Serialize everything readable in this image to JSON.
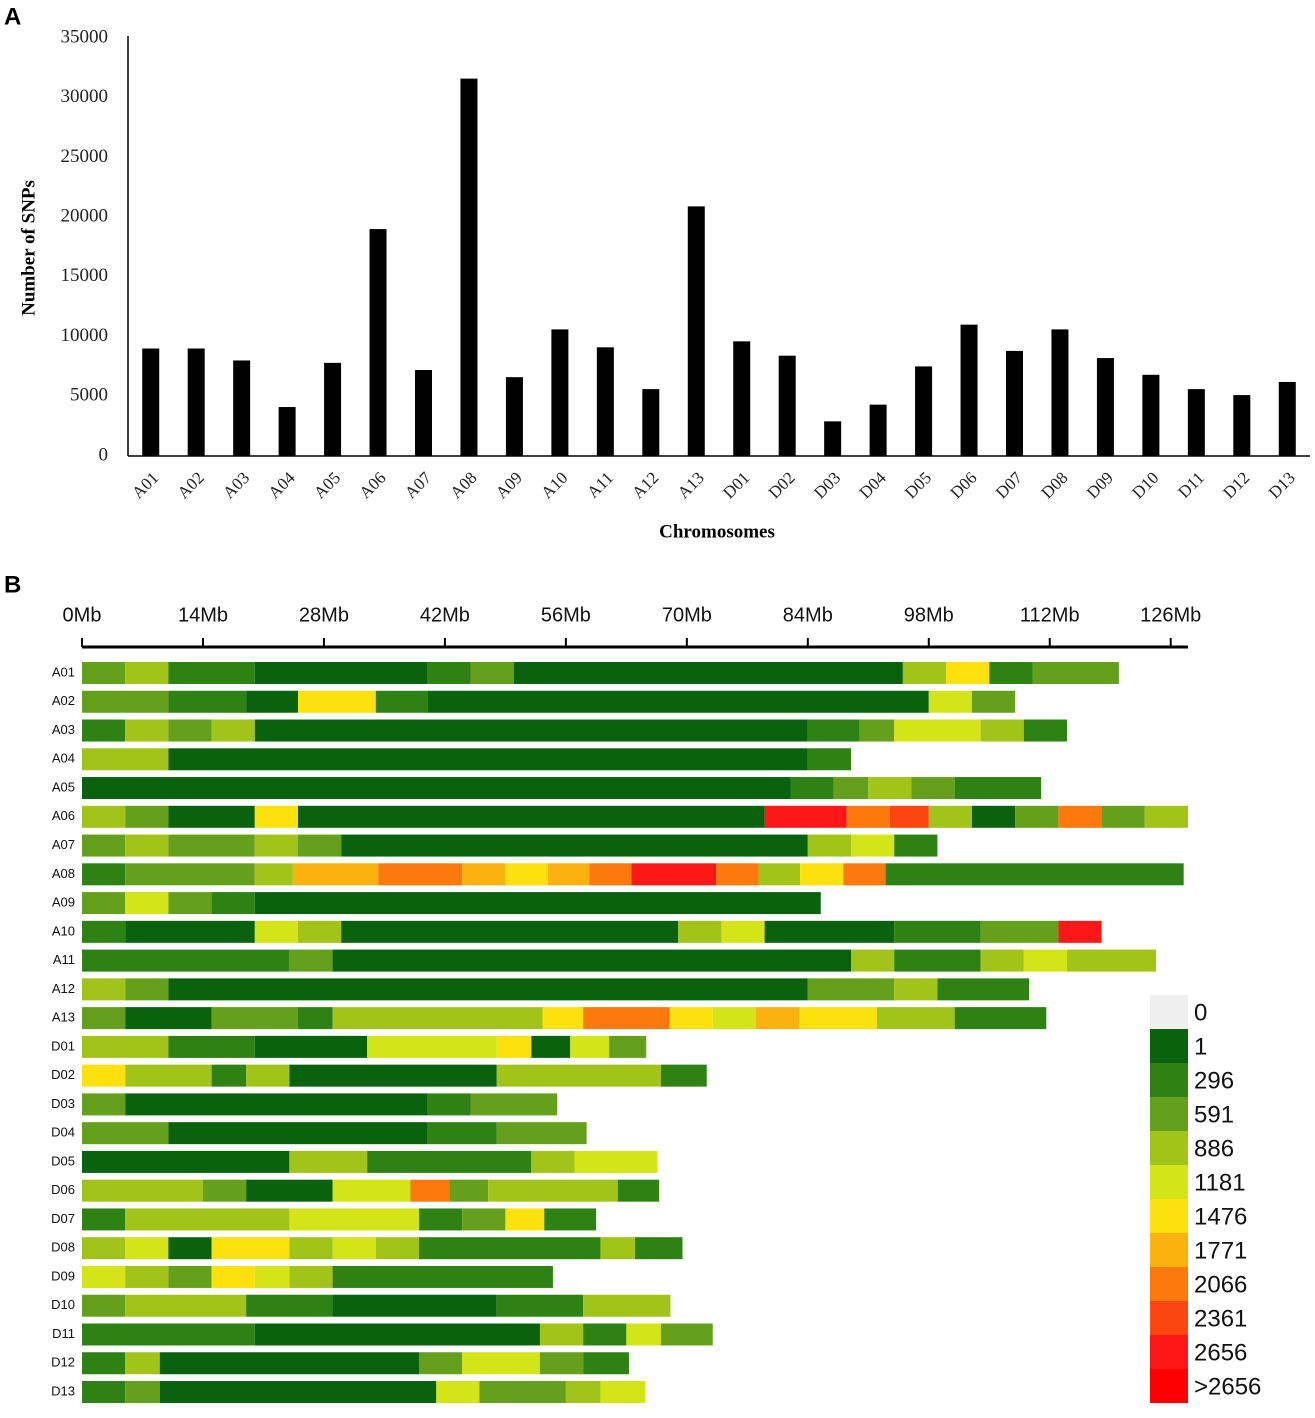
{
  "chart_data": [
    {
      "type": "bar",
      "panel": "A",
      "x_label": "Chromosomes",
      "y_label": "Number of SNPs",
      "color": "#000000",
      "categories": [
        "A01",
        "A02",
        "A03",
        "A04",
        "A05",
        "A06",
        "A07",
        "A08",
        "A09",
        "A10",
        "A11",
        "A12",
        "A13",
        "D01",
        "D02",
        "D03",
        "D04",
        "D05",
        "D06",
        "D07",
        "D08",
        "D09",
        "D10",
        "D11",
        "D12",
        "D13"
      ],
      "values": [
        9000,
        9000,
        8000,
        4100,
        7800,
        19000,
        7200,
        31600,
        6600,
        10600,
        9100,
        5600,
        20900,
        9600,
        8400,
        2900,
        4300,
        7500,
        11000,
        8800,
        10600,
        8200,
        6800,
        5600,
        5100,
        6200
      ],
      "ylim": [
        0,
        35000
      ],
      "yticks": [
        0,
        5000,
        10000,
        15000,
        20000,
        25000,
        30000,
        35000
      ]
    },
    {
      "type": "density",
      "panel": "B",
      "xlim": [
        0,
        128
      ],
      "xticks": [
        {
          "value": 0,
          "label": "0Mb"
        },
        {
          "value": 14,
          "label": "14Mb"
        },
        {
          "value": 28,
          "label": "28Mb"
        },
        {
          "value": 42,
          "label": "42Mb"
        },
        {
          "value": 56,
          "label": "56Mb"
        },
        {
          "value": 70,
          "label": "70Mb"
        },
        {
          "value": 84,
          "label": "84Mb"
        },
        {
          "value": 98,
          "label": "98Mb"
        },
        {
          "value": 112,
          "label": "112Mb"
        },
        {
          "value": 126,
          "label": "126Mb"
        }
      ],
      "legend": {
        "labels": [
          0,
          1,
          296,
          591,
          886,
          1181,
          1476,
          1771,
          2066,
          2361,
          2656,
          ">2656"
        ],
        "colors": [
          "#efefef",
          "#0a620f",
          "#2e8214",
          "#64a01c",
          "#a2c41a",
          "#d3e418",
          "#fde10c",
          "#fbb20e",
          "#fb790d",
          "#fb4612",
          "#fd1717",
          "#fe0000"
        ]
      },
      "chromosomes": [
        {
          "name": "A01",
          "edges": [
            0,
            5,
            10,
            20,
            40,
            45,
            50,
            95,
            100,
            105,
            110,
            120
          ],
          "values": [
            750,
            1000,
            450,
            150,
            450,
            750,
            150,
            1000,
            1600,
            450,
            750
          ]
        },
        {
          "name": "A02",
          "edges": [
            0,
            10,
            19,
            25,
            34,
            40,
            98,
            103,
            108
          ],
          "values": [
            750,
            450,
            150,
            1600,
            450,
            150,
            1300,
            750
          ]
        },
        {
          "name": "A03",
          "edges": [
            0,
            5,
            10,
            15,
            20,
            84,
            90,
            94,
            104,
            109,
            114
          ],
          "values": [
            450,
            1000,
            750,
            1000,
            150,
            450,
            750,
            1300,
            1000,
            450
          ]
        },
        {
          "name": "A04",
          "edges": [
            0,
            10,
            84,
            89
          ],
          "values": [
            1000,
            150,
            450
          ]
        },
        {
          "name": "A05",
          "edges": [
            0,
            82,
            87,
            91,
            96,
            101,
            111
          ],
          "values": [
            150,
            450,
            750,
            1000,
            750,
            450
          ]
        },
        {
          "name": "A06",
          "edges": [
            0,
            5,
            10,
            20,
            25,
            79,
            88.5,
            93.5,
            98,
            103,
            108,
            113,
            118,
            123,
            128
          ],
          "values": [
            1000,
            750,
            150,
            1600,
            150,
            2800,
            2200,
            2500,
            1000,
            150,
            750,
            2200,
            750,
            1000
          ]
        },
        {
          "name": "A07",
          "edges": [
            0,
            5,
            10,
            20,
            25,
            30,
            84,
            89,
            94,
            99
          ],
          "values": [
            750,
            1000,
            750,
            1000,
            750,
            150,
            1000,
            1300,
            450
          ]
        },
        {
          "name": "A08",
          "edges": [
            0,
            5,
            20,
            24.4,
            34.3,
            44,
            49,
            53.9,
            58.7,
            63.6,
            73.4,
            78.3,
            83.1,
            88.1,
            93,
            127.5
          ],
          "values": [
            450,
            750,
            1000,
            1900,
            2200,
            1900,
            1600,
            1900,
            2200,
            2800,
            2200,
            1000,
            1600,
            2200,
            450
          ]
        },
        {
          "name": "A09",
          "edges": [
            0,
            5,
            10,
            15,
            20,
            85.5
          ],
          "values": [
            750,
            1300,
            750,
            450,
            150
          ]
        },
        {
          "name": "A10",
          "edges": [
            0,
            5,
            20,
            25,
            30,
            69,
            74,
            79,
            94,
            104,
            113,
            118
          ],
          "values": [
            450,
            150,
            1300,
            1000,
            150,
            1000,
            1300,
            150,
            450,
            750,
            2800
          ]
        },
        {
          "name": "A11",
          "edges": [
            0,
            24,
            29,
            89,
            94,
            104,
            109,
            114,
            124.3
          ],
          "values": [
            450,
            750,
            150,
            1000,
            450,
            1000,
            1300,
            1000
          ]
        },
        {
          "name": "A12",
          "edges": [
            0,
            5,
            10,
            84,
            94,
            99,
            109.6
          ],
          "values": [
            1000,
            750,
            150,
            750,
            1000,
            450
          ]
        },
        {
          "name": "A13",
          "edges": [
            0,
            5,
            15,
            25,
            29,
            53.3,
            58,
            68,
            73,
            78,
            83,
            92,
            101,
            111.6
          ],
          "values": [
            750,
            150,
            750,
            450,
            1000,
            1600,
            2200,
            1600,
            1300,
            1900,
            1600,
            1000,
            450
          ]
        },
        {
          "name": "D01",
          "edges": [
            0,
            10,
            20,
            33,
            48,
            52,
            56.5,
            61,
            65.3
          ],
          "values": [
            1000,
            450,
            150,
            1300,
            1600,
            150,
            1300,
            750
          ]
        },
        {
          "name": "D02",
          "edges": [
            0,
            5,
            15,
            19,
            24,
            48,
            67,
            72.3
          ],
          "values": [
            1600,
            1000,
            450,
            1000,
            150,
            1000,
            450
          ]
        },
        {
          "name": "D03",
          "edges": [
            0,
            5,
            40,
            45,
            55
          ],
          "values": [
            750,
            150,
            450,
            750
          ]
        },
        {
          "name": "D04",
          "edges": [
            0,
            10,
            40,
            48,
            58.4
          ],
          "values": [
            750,
            150,
            450,
            750
          ]
        },
        {
          "name": "D05",
          "edges": [
            0,
            24,
            33,
            52,
            57,
            66.6
          ],
          "values": [
            150,
            1000,
            450,
            1000,
            1300
          ]
        },
        {
          "name": "D06",
          "edges": [
            0,
            14,
            19,
            29,
            38,
            42.5,
            47,
            62,
            66.8
          ],
          "values": [
            1000,
            750,
            150,
            1300,
            2200,
            750,
            1000,
            450
          ]
        },
        {
          "name": "D07",
          "edges": [
            0,
            5,
            24,
            39,
            44,
            49,
            53.5,
            59.5
          ],
          "values": [
            450,
            1000,
            1300,
            450,
            750,
            1600,
            450
          ]
        },
        {
          "name": "D08",
          "edges": [
            0,
            5,
            10,
            15,
            24,
            29,
            34,
            39,
            60,
            64,
            69.5
          ],
          "values": [
            1000,
            1300,
            150,
            1600,
            1000,
            1300,
            1000,
            450,
            1000,
            450
          ]
        },
        {
          "name": "D09",
          "edges": [
            0,
            5,
            10,
            15,
            20,
            24,
            29,
            54.5
          ],
          "values": [
            1300,
            1000,
            750,
            1600,
            1300,
            1000,
            450
          ]
        },
        {
          "name": "D10",
          "edges": [
            0,
            5,
            19,
            29,
            48,
            58,
            68.1
          ],
          "values": [
            750,
            1000,
            450,
            150,
            450,
            1000
          ]
        },
        {
          "name": "D11",
          "edges": [
            0,
            20,
            53,
            58,
            63,
            67,
            73
          ],
          "values": [
            450,
            150,
            1000,
            450,
            1300,
            750
          ]
        },
        {
          "name": "D12",
          "edges": [
            0,
            5,
            9,
            39,
            44,
            53,
            58,
            63.3
          ],
          "values": [
            450,
            1000,
            150,
            750,
            1300,
            750,
            450
          ]
        },
        {
          "name": "D13",
          "edges": [
            0,
            5,
            9,
            41,
            46,
            56,
            60,
            65.2
          ],
          "values": [
            450,
            750,
            150,
            1300,
            750,
            1000,
            1300
          ]
        }
      ]
    }
  ]
}
